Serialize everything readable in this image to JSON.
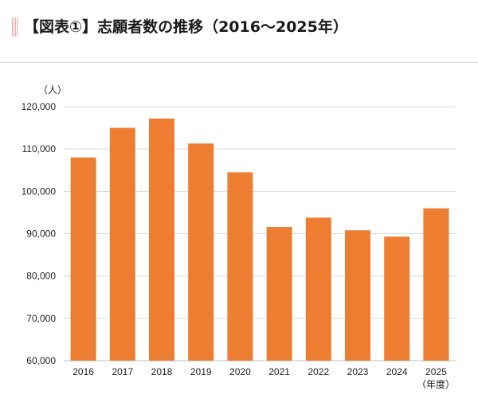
{
  "heading": {
    "title": "【図表①】志願者数の推移（2016〜2025年）"
  },
  "chart_data": {
    "type": "bar",
    "title": "【図表①】志願者数の推移（2016〜2025年）",
    "ylabel": "（人）",
    "xlabel": "（年度）",
    "categories": [
      "2016",
      "2017",
      "2018",
      "2019",
      "2020",
      "2021",
      "2022",
      "2023",
      "2024",
      "2025"
    ],
    "values": [
      108000,
      115000,
      117200,
      111300,
      104500,
      91600,
      93800,
      90800,
      89300,
      96000
    ],
    "ylim": [
      60000,
      120000
    ],
    "yticks": [
      60000,
      70000,
      80000,
      90000,
      100000,
      110000,
      120000
    ],
    "ytick_labels": [
      "60,000",
      "70,000",
      "80,000",
      "90,000",
      "100,000",
      "110,000",
      "120,000"
    ],
    "grid": true,
    "legend": "none",
    "bar_color": "#ed7d31",
    "grid_color": "#d9d9d9",
    "axis_color": "#bfbfbf"
  }
}
